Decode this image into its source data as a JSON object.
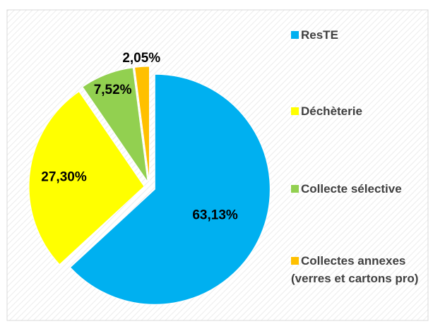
{
  "chart_data": {
    "type": "pie",
    "categories": [
      "ResTE",
      "Déchèterie",
      "Collecte sélective",
      "Collectes annexes (verres et cartons pro)"
    ],
    "values": [
      63.13,
      27.3,
      7.52,
      2.05
    ],
    "value_labels": [
      "63,13%",
      "27,30%",
      "7,52%",
      "2,05%"
    ],
    "colors": [
      "#00b0f0",
      "#ffff00",
      "#92d050",
      "#ffc000"
    ],
    "legend": "right"
  }
}
